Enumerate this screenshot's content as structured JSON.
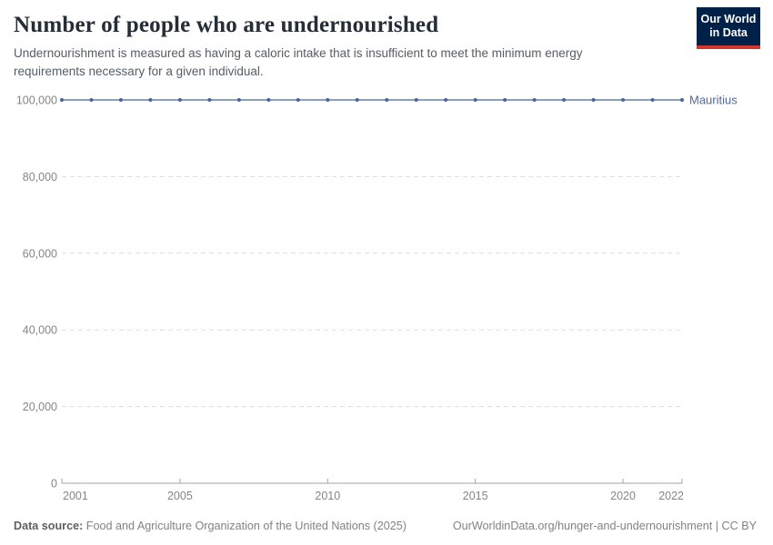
{
  "header": {
    "title": "Number of people who are undernourished",
    "subtitle": "Undernourishment is measured as having a caloric intake that is insufficient to meet the minimum energy requirements necessary for a given individual.",
    "logo": {
      "line1": "Our World",
      "line2": "in Data"
    }
  },
  "chart_data": {
    "type": "line",
    "title": "Number of people who are undernourished",
    "x": [
      2001,
      2002,
      2003,
      2004,
      2005,
      2006,
      2007,
      2008,
      2009,
      2010,
      2011,
      2012,
      2013,
      2014,
      2015,
      2016,
      2017,
      2018,
      2019,
      2020,
      2021,
      2022
    ],
    "series": [
      {
        "name": "Mauritius",
        "values": [
          100000,
          100000,
          100000,
          100000,
          100000,
          100000,
          100000,
          100000,
          100000,
          100000,
          100000,
          100000,
          100000,
          100000,
          100000,
          100000,
          100000,
          100000,
          100000,
          100000,
          100000,
          100000
        ]
      }
    ],
    "xlabel": "",
    "ylabel": "",
    "ylim": [
      0,
      100000
    ],
    "yticks": [
      0,
      20000,
      40000,
      60000,
      80000,
      100000
    ],
    "xticks": [
      2001,
      2005,
      2010,
      2015,
      2020,
      2022
    ],
    "grid": "horizontal-dashed",
    "legend_position": "end-of-line"
  },
  "footer": {
    "source_label": "Data source:",
    "source_text": " Food and Agriculture Organization of the United Nations (2025)",
    "link_text": "OurWorldinData.org/hunger-and-undernourishment | CC BY"
  },
  "colors": {
    "accent": "#4c6a9c",
    "line": "#6080b0",
    "marker": "#4a639e",
    "grid": "#dddddd",
    "axis": "#a3a3a3",
    "tick_text": "#858585",
    "entity_label": "#4f6a9e"
  }
}
